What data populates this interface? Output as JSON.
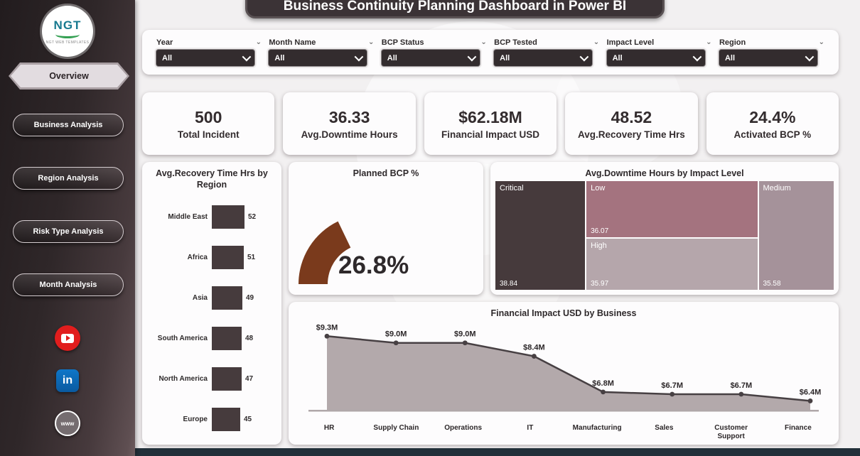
{
  "title": "Business Continuity Planning Dashboard in Power BI",
  "sidebar": {
    "logo": {
      "text": "NGT",
      "caption": "NGT WEB TEMPLATES"
    },
    "items": [
      {
        "label": "Overview",
        "active": true
      },
      {
        "label": "Business Analysis",
        "active": false
      },
      {
        "label": "Region Analysis",
        "active": false
      },
      {
        "label": "Risk Type Analysis",
        "active": false
      },
      {
        "label": "Month Analysis",
        "active": false
      }
    ],
    "social": [
      {
        "name": "youtube"
      },
      {
        "name": "linkedin",
        "text": "in"
      },
      {
        "name": "website",
        "text": "www"
      }
    ]
  },
  "filters": [
    {
      "label": "Year",
      "value": "All"
    },
    {
      "label": "Month Name",
      "value": "All"
    },
    {
      "label": "BCP Status",
      "value": "All"
    },
    {
      "label": "BCP Tested",
      "value": "All"
    },
    {
      "label": "Impact Level",
      "value": "All"
    },
    {
      "label": "Region",
      "value": "All"
    }
  ],
  "kpis": [
    {
      "value": "500",
      "label": "Total Incident"
    },
    {
      "value": "36.33",
      "label": "Avg.Downtime Hours"
    },
    {
      "value": "$62.18M",
      "label": "Financial Impact USD"
    },
    {
      "value": "48.52",
      "label": "Avg.Recovery Time Hrs"
    },
    {
      "value": "24.4%",
      "label": "Activated BCP %"
    }
  ],
  "chart_data": [
    {
      "type": "bar",
      "title": "Avg.Recovery Time Hrs by Region",
      "orientation": "horizontal",
      "categories": [
        "Middle East",
        "Africa",
        "Asia",
        "South America",
        "North America",
        "Europe"
      ],
      "values": [
        52,
        51,
        49,
        48,
        47,
        45
      ],
      "bar_color": "#463b3d"
    },
    {
      "type": "gauge",
      "title": "Planned BCP %",
      "value": 26.8,
      "max": 100,
      "display": "26.8%",
      "color": "#7a3a1c"
    },
    {
      "type": "treemap",
      "title": "Avg.Downtime Hours by Impact Level",
      "items": [
        {
          "label": "Critical",
          "value": 38.84,
          "color": "#463a3c"
        },
        {
          "label": "Low",
          "value": 36.07,
          "color": "#a4737f"
        },
        {
          "label": "High",
          "value": 35.97,
          "color": "#b5a6ab"
        },
        {
          "label": "Medium",
          "value": 35.58,
          "color": "#a5929a"
        }
      ]
    },
    {
      "type": "area",
      "title": "Financial Impact USD by Business",
      "categories": [
        "HR",
        "Supply Chain",
        "Operations",
        "IT",
        "Manufacturing",
        "Sales",
        "Customer\nSupport",
        "Finance"
      ],
      "values": [
        9.3,
        9.0,
        9.0,
        8.4,
        6.8,
        6.7,
        6.7,
        6.4
      ],
      "labels": [
        "$9.3M",
        "$9.0M",
        "$9.0M",
        "$8.4M",
        "$6.8M",
        "$6.7M",
        "$6.7M",
        "$6.4M"
      ],
      "ylim": [
        6.0,
        9.5
      ],
      "line_color": "#474043",
      "fill_color": "#b3a9ab"
    }
  ]
}
